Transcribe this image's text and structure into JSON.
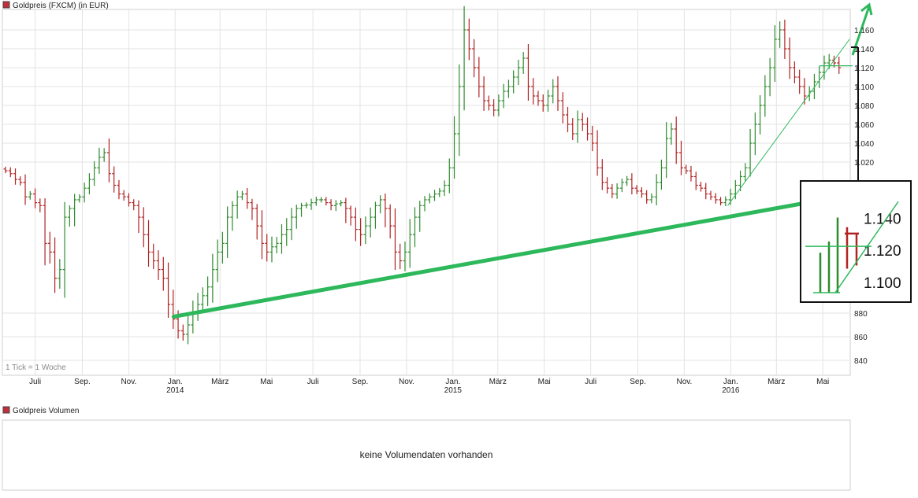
{
  "header": {
    "price_title": "Goldpreis (FXCM) (in EUR)",
    "volume_title": "Goldpreis Volumen",
    "tick_note": "1 Tick = 1 Woche",
    "volume_message": "keine Volumendaten vorhanden"
  },
  "colors": {
    "up": "#2e8b2e",
    "down": "#b22222",
    "trend": "#2db85c",
    "swatch": "#c0303a",
    "grid": "#e3e3e3"
  },
  "chart_data": {
    "type": "ohlc",
    "title": "Goldpreis (FXCM) (in EUR)",
    "interval": "1 Woche",
    "ylim": [
      830,
      1175
    ],
    "y_ticks": [
      840,
      860,
      880,
      1020,
      1040,
      1060,
      1080,
      1100,
      1120,
      1140,
      1160
    ],
    "x_month_labels": [
      {
        "label": "Juli",
        "year": "",
        "date": "2013-07-01"
      },
      {
        "label": "Sep.",
        "year": "",
        "date": "2013-09-01"
      },
      {
        "label": "Nov.",
        "year": "",
        "date": "2013-11-01"
      },
      {
        "label": "Jan.",
        "year": "2014",
        "date": "2014-01-01"
      },
      {
        "label": "März",
        "year": "",
        "date": "2014-03-01"
      },
      {
        "label": "Mai",
        "year": "",
        "date": "2014-05-01"
      },
      {
        "label": "Juli",
        "year": "",
        "date": "2014-07-01"
      },
      {
        "label": "Sep.",
        "year": "",
        "date": "2014-09-01"
      },
      {
        "label": "Nov.",
        "year": "",
        "date": "2014-11-01"
      },
      {
        "label": "Jan.",
        "year": "2015",
        "date": "2015-01-01"
      },
      {
        "label": "März",
        "year": "",
        "date": "2015-03-01"
      },
      {
        "label": "Mai",
        "year": "",
        "date": "2015-05-01"
      },
      {
        "label": "Juli",
        "year": "",
        "date": "2015-07-01"
      },
      {
        "label": "Sep.",
        "year": "",
        "date": "2015-09-01"
      },
      {
        "label": "Nov.",
        "year": "",
        "date": "2015-11-01"
      },
      {
        "label": "Jan.",
        "year": "2016",
        "date": "2016-01-01"
      },
      {
        "label": "März",
        "year": "",
        "date": "2016-03-01"
      },
      {
        "label": "Mai",
        "year": "",
        "date": "2016-05-01"
      }
    ],
    "xlim": [
      "2013-05-20",
      "2016-06-05"
    ],
    "weekly_close": [
      1005,
      1000,
      990,
      985,
      960,
      965,
      950,
      945,
      920,
      915,
      900,
      905,
      935,
      940,
      955,
      960,
      975,
      990,
      1010,
      1025,
      1030,
      1000,
      980,
      965,
      960,
      950,
      945,
      935,
      925,
      915,
      910,
      905,
      900,
      885,
      875,
      865,
      862,
      870,
      880,
      885,
      890,
      895,
      905,
      915,
      920,
      935,
      945,
      960,
      965,
      950,
      940,
      930,
      920,
      915,
      918,
      920,
      925,
      928,
      935,
      940,
      945,
      946,
      950,
      955,
      955,
      950,
      945,
      948,
      950,
      940,
      935,
      928,
      925,
      930,
      935,
      945,
      955,
      940,
      930,
      915,
      910,
      915,
      925,
      935,
      945,
      955,
      960,
      965,
      970,
      980,
      1010,
      1050,
      1100,
      1160,
      1140,
      1120,
      1100,
      1085,
      1080,
      1075,
      1085,
      1095,
      1100,
      1110,
      1120,
      1130,
      1100,
      1090,
      1085,
      1080,
      1090,
      1100,
      1085,
      1070,
      1060,
      1050,
      1065,
      1060,
      1050,
      1040,
      1010,
      985,
      975,
      965,
      975,
      985,
      990,
      975,
      970,
      965,
      955,
      960,
      985,
      1010,
      1045,
      1055,
      1030,
      1010,
      1005,
      995,
      980,
      975,
      965,
      960,
      955,
      950,
      955,
      965,
      980,
      995,
      1010,
      1040,
      1060,
      1080,
      1100,
      1120,
      1150,
      1160,
      1140,
      1120,
      1110,
      1100,
      1090,
      1095,
      1105,
      1115,
      1125,
      1128,
      1125,
      1120
    ],
    "trendlines": [
      {
        "name": "",
        "from": {
          "date": "2013-12-30",
          "value": 877
        },
        "to": {
          "date": "2016-05-23",
          "value": 960
        }
      },
      {
        "name": "",
        "from": {
          "date": "2015-12-28",
          "value": 945
        },
        "to": {
          "date": "2016-06-05",
          "value": 1150
        }
      }
    ],
    "horizontal_marker": 1122,
    "ylabel": "",
    "xlabel": ""
  },
  "zoom": {
    "y_ticks": [
      1100,
      1120,
      1140
    ],
    "ylim": [
      1092,
      1158
    ]
  }
}
